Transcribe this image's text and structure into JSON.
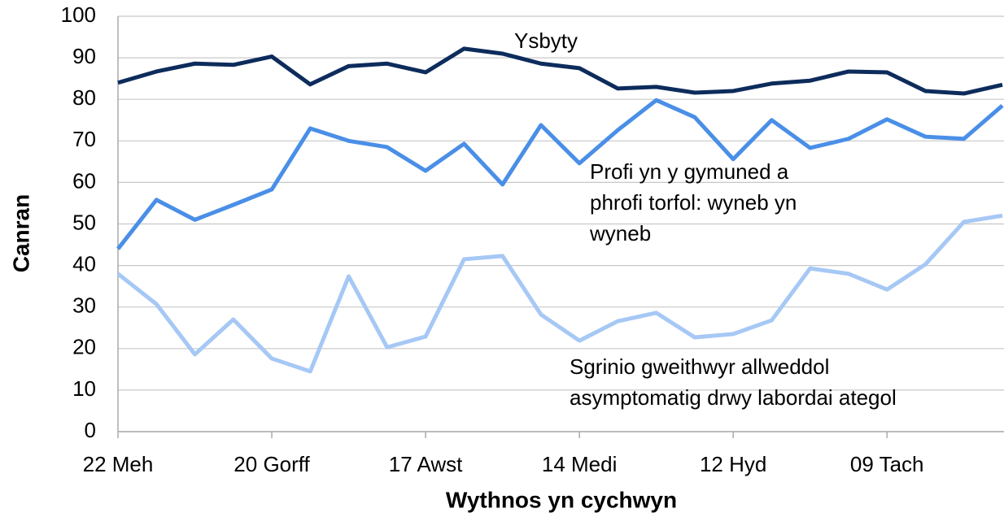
{
  "chart_data": {
    "type": "line",
    "x_label": "Wythnos yn cychwyn",
    "y_label": "Canran",
    "categories": [
      "22 Meh",
      null,
      null,
      null,
      "20 Gorff",
      null,
      null,
      null,
      "17 Awst",
      null,
      null,
      null,
      "14 Medi",
      null,
      null,
      null,
      "12 Hyd",
      null,
      null,
      null,
      "09 Tach",
      null,
      null,
      null
    ],
    "ylim": [
      0,
      100
    ],
    "yticks": [
      0,
      10,
      20,
      30,
      40,
      50,
      60,
      70,
      80,
      90,
      100
    ],
    "grid": true,
    "series": [
      {
        "label": [
          "Ysbyty"
        ],
        "color": "#0d2c5c",
        "values": [
          84,
          86.7,
          88.6,
          88.3,
          90.3,
          83.6,
          88,
          88.6,
          86.5,
          92.2,
          91,
          88.6,
          87.5,
          82.6,
          83,
          81.6,
          82,
          83.8,
          84.5,
          86.7,
          86.5,
          82,
          81.4,
          83.5
        ]
      },
      {
        "label": [
          "Profi yn y gymuned a",
          "phrofi torfol: wyneb yn",
          "wyneb"
        ],
        "color": "#4a8fe7",
        "values": [
          44,
          55.8,
          51,
          54.6,
          58.3,
          73,
          70,
          68.5,
          62.8,
          69.3,
          59.5,
          73.8,
          64.6,
          72.6,
          79.8,
          75.7,
          65.6,
          75,
          68.3,
          70.5,
          75.2,
          71,
          70.5,
          78.5
        ]
      },
      {
        "label": [
          "Sgrinio gweithwyr allweddol",
          "asymptomatig drwy labordai ategol"
        ],
        "color": "#a6c8f5",
        "values": [
          38,
          30.7,
          18.6,
          27,
          17.6,
          14.5,
          37.4,
          20.3,
          22.9,
          41.5,
          42.3,
          28.2,
          21.9,
          26.6,
          28.6,
          22.7,
          23.5,
          26.8,
          39.3,
          38,
          34.2,
          40.3,
          50.5,
          52
        ]
      }
    ]
  }
}
